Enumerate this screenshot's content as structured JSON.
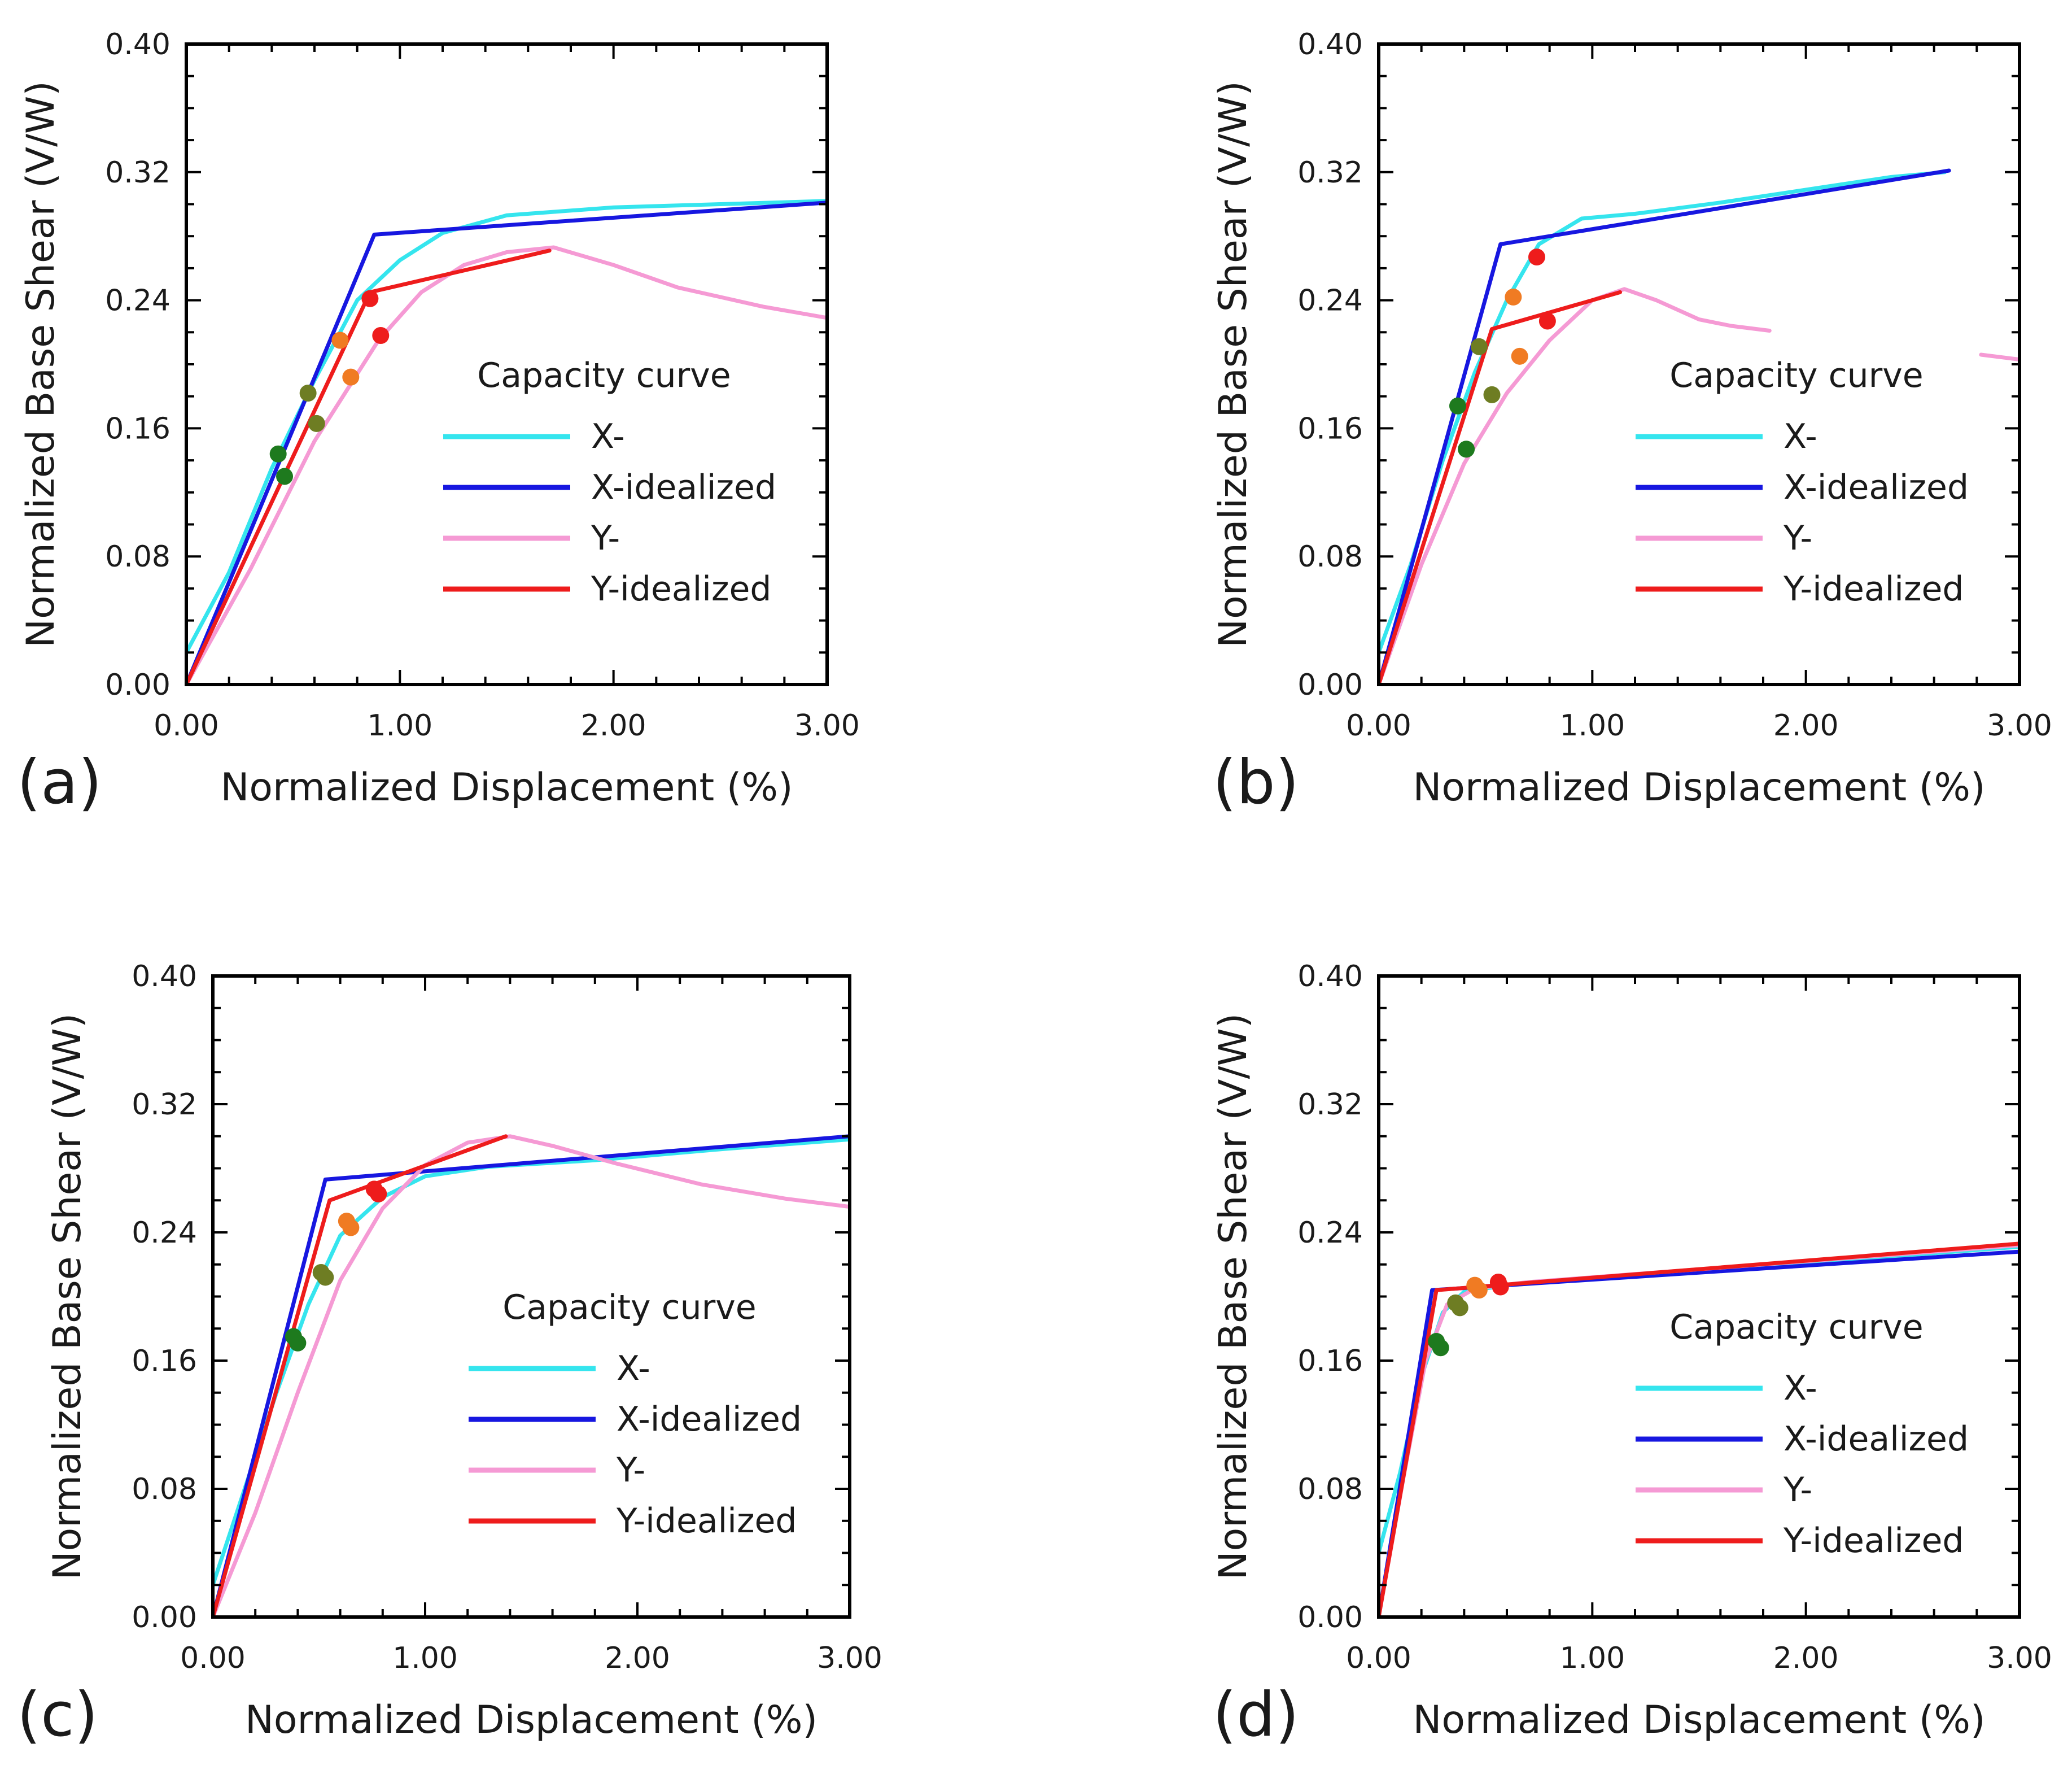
{
  "chart_data": [
    {
      "type": "line",
      "panel_label": "(a)",
      "xlabel": "Normalized Displacement (%)",
      "ylabel": "Normalized Base Shear (V/W)",
      "xlim": [
        0,
        3
      ],
      "ylim": [
        0,
        0.4
      ],
      "xticks": [
        "0.00",
        "1.00",
        "2.00",
        "3.00"
      ],
      "yticks": [
        "0.00",
        "0.08",
        "0.16",
        "0.24",
        "0.32",
        "0.40"
      ],
      "grid": false,
      "legend": {
        "title": "Capacity curve",
        "position": "right-center"
      },
      "series": [
        {
          "name": "X-",
          "color": "#35e5ee",
          "points": [
            [
              0,
              0.02
            ],
            [
              0.2,
              0.07
            ],
            [
              0.4,
              0.135
            ],
            [
              0.6,
              0.19
            ],
            [
              0.8,
              0.24
            ],
            [
              1.0,
              0.265
            ],
            [
              1.2,
              0.282
            ],
            [
              1.5,
              0.293
            ],
            [
              2.0,
              0.298
            ],
            [
              2.5,
              0.3
            ],
            [
              3.0,
              0.302
            ]
          ]
        },
        {
          "name": "X-idealized",
          "color": "#1717e0",
          "points": [
            [
              0,
              0
            ],
            [
              0.88,
              0.281
            ],
            [
              3.0,
              0.301
            ]
          ]
        },
        {
          "name": "Y-",
          "color": "#f59ad4",
          "points": [
            [
              0,
              0
            ],
            [
              0.3,
              0.072
            ],
            [
              0.6,
              0.152
            ],
            [
              0.9,
              0.215
            ],
            [
              1.1,
              0.245
            ],
            [
              1.3,
              0.262
            ],
            [
              1.5,
              0.27
            ],
            [
              1.72,
              0.273
            ],
            [
              2.0,
              0.262
            ],
            [
              2.3,
              0.248
            ],
            [
              2.7,
              0.236
            ],
            [
              3.0,
              0.229
            ]
          ]
        },
        {
          "name": "Y-idealized",
          "color": "#ee1c1c",
          "points": [
            [
              0,
              0
            ],
            [
              0.86,
              0.245
            ],
            [
              1.7,
              0.271
            ]
          ]
        }
      ],
      "markers": [
        {
          "x": 0.43,
          "y": 0.144,
          "color": "#1e7a1e"
        },
        {
          "x": 0.46,
          "y": 0.13,
          "color": "#1e7a1e"
        },
        {
          "x": 0.57,
          "y": 0.182,
          "color": "#6e7d23"
        },
        {
          "x": 0.61,
          "y": 0.163,
          "color": "#6e7d23"
        },
        {
          "x": 0.72,
          "y": 0.215,
          "color": "#f07b23"
        },
        {
          "x": 0.77,
          "y": 0.192,
          "color": "#f07b23"
        },
        {
          "x": 0.86,
          "y": 0.241,
          "color": "#ee1c1c"
        },
        {
          "x": 0.91,
          "y": 0.218,
          "color": "#ee1c1c"
        }
      ]
    },
    {
      "type": "line",
      "panel_label": "(b)",
      "xlabel": "Normalized Displacement (%)",
      "ylabel": "Normalized Base Shear (V/W)",
      "xlim": [
        0,
        3
      ],
      "ylim": [
        0,
        0.4
      ],
      "xticks": [
        "0.00",
        "1.00",
        "2.00",
        "3.00"
      ],
      "yticks": [
        "0.00",
        "0.08",
        "0.16",
        "0.24",
        "0.32",
        "0.40"
      ],
      "grid": false,
      "legend": {
        "title": "Capacity curve",
        "position": "right-center"
      },
      "series": [
        {
          "name": "X-",
          "color": "#35e5ee",
          "points": [
            [
              0,
              0.02
            ],
            [
              0.15,
              0.075
            ],
            [
              0.3,
              0.14
            ],
            [
              0.45,
              0.195
            ],
            [
              0.6,
              0.24
            ],
            [
              0.75,
              0.275
            ],
            [
              0.95,
              0.291
            ],
            [
              1.2,
              0.294
            ],
            [
              1.6,
              0.301
            ],
            [
              2.0,
              0.309
            ],
            [
              2.4,
              0.317
            ],
            [
              2.65,
              0.32
            ]
          ]
        },
        {
          "name": "X-idealized",
          "color": "#1717e0",
          "points": [
            [
              0,
              0
            ],
            [
              0.57,
              0.275
            ],
            [
              2.67,
              0.321
            ]
          ]
        },
        {
          "name": "Y-",
          "color": "#f59ad4",
          "points": [
            [
              0,
              0
            ],
            [
              0.2,
              0.075
            ],
            [
              0.4,
              0.138
            ],
            [
              0.6,
              0.182
            ],
            [
              0.8,
              0.215
            ],
            [
              1.0,
              0.24
            ],
            [
              1.15,
              0.247
            ],
            [
              1.3,
              0.24
            ],
            [
              1.5,
              0.228
            ],
            [
              1.65,
              0.224
            ],
            [
              1.83,
              0.221
            ]
          ]
        },
        {
          "name": "Y- (tail)",
          "color": "#f59ad4",
          "points": [
            [
              2.82,
              0.206
            ],
            [
              3.0,
              0.203
            ]
          ]
        },
        {
          "name": "Y-idealized",
          "color": "#ee1c1c",
          "points": [
            [
              0,
              0
            ],
            [
              0.53,
              0.222
            ],
            [
              1.13,
              0.245
            ]
          ]
        }
      ],
      "markers": [
        {
          "x": 0.37,
          "y": 0.174,
          "color": "#1e7a1e"
        },
        {
          "x": 0.41,
          "y": 0.147,
          "color": "#1e7a1e"
        },
        {
          "x": 0.47,
          "y": 0.211,
          "color": "#6e7d23"
        },
        {
          "x": 0.53,
          "y": 0.181,
          "color": "#6e7d23"
        },
        {
          "x": 0.63,
          "y": 0.242,
          "color": "#f07b23"
        },
        {
          "x": 0.66,
          "y": 0.205,
          "color": "#f07b23"
        },
        {
          "x": 0.74,
          "y": 0.267,
          "color": "#ee1c1c"
        },
        {
          "x": 0.79,
          "y": 0.227,
          "color": "#ee1c1c"
        }
      ]
    },
    {
      "type": "line",
      "panel_label": "(c)",
      "xlabel": "Normalized Displacement (%)",
      "ylabel": "Normalized Base Shear (V/W)",
      "xlim": [
        0,
        3
      ],
      "ylim": [
        0,
        0.4
      ],
      "xticks": [
        "0.00",
        "1.00",
        "2.00",
        "3.00"
      ],
      "yticks": [
        "0.00",
        "0.08",
        "0.16",
        "0.24",
        "0.32",
        "0.40"
      ],
      "grid": false,
      "legend": {
        "title": "Capacity curve",
        "position": "right-center"
      },
      "series": [
        {
          "name": "X-",
          "color": "#35e5ee",
          "points": [
            [
              0,
              0.02
            ],
            [
              0.15,
              0.08
            ],
            [
              0.3,
              0.14
            ],
            [
              0.45,
              0.195
            ],
            [
              0.6,
              0.238
            ],
            [
              0.8,
              0.262
            ],
            [
              1.0,
              0.275
            ],
            [
              1.3,
              0.281
            ],
            [
              1.8,
              0.285
            ],
            [
              2.4,
              0.292
            ],
            [
              3.0,
              0.298
            ]
          ]
        },
        {
          "name": "X-idealized",
          "color": "#1717e0",
          "points": [
            [
              0,
              0
            ],
            [
              0.53,
              0.273
            ],
            [
              3.0,
              0.3
            ]
          ]
        },
        {
          "name": "Y-",
          "color": "#f59ad4",
          "points": [
            [
              0,
              0
            ],
            [
              0.2,
              0.065
            ],
            [
              0.4,
              0.14
            ],
            [
              0.6,
              0.21
            ],
            [
              0.8,
              0.255
            ],
            [
              1.0,
              0.282
            ],
            [
              1.2,
              0.296
            ],
            [
              1.4,
              0.3
            ],
            [
              1.6,
              0.294
            ],
            [
              1.9,
              0.283
            ],
            [
              2.3,
              0.27
            ],
            [
              2.7,
              0.261
            ],
            [
              3.0,
              0.256
            ]
          ]
        },
        {
          "name": "Y-idealized",
          "color": "#ee1c1c",
          "points": [
            [
              0,
              0
            ],
            [
              0.55,
              0.26
            ],
            [
              1.38,
              0.3
            ]
          ]
        }
      ],
      "markers": [
        {
          "x": 0.38,
          "y": 0.175,
          "color": "#1e7a1e"
        },
        {
          "x": 0.4,
          "y": 0.171,
          "color": "#1e7a1e"
        },
        {
          "x": 0.51,
          "y": 0.215,
          "color": "#6e7d23"
        },
        {
          "x": 0.53,
          "y": 0.212,
          "color": "#6e7d23"
        },
        {
          "x": 0.63,
          "y": 0.247,
          "color": "#f07b23"
        },
        {
          "x": 0.65,
          "y": 0.243,
          "color": "#f07b23"
        },
        {
          "x": 0.76,
          "y": 0.267,
          "color": "#ee1c1c"
        },
        {
          "x": 0.78,
          "y": 0.264,
          "color": "#ee1c1c"
        }
      ]
    },
    {
      "type": "line",
      "panel_label": "(d)",
      "xlabel": "Normalized Displacement (%)",
      "ylabel": "Normalized Base Shear (V/W)",
      "xlim": [
        0,
        3
      ],
      "ylim": [
        0,
        0.4
      ],
      "xticks": [
        "0.00",
        "1.00",
        "2.00",
        "3.00"
      ],
      "yticks": [
        "0.00",
        "0.08",
        "0.16",
        "0.24",
        "0.32",
        "0.40"
      ],
      "grid": false,
      "legend": {
        "title": "Capacity curve",
        "position": "right-center"
      },
      "series": [
        {
          "name": "X-",
          "color": "#35e5ee",
          "points": [
            [
              0,
              0.04
            ],
            [
              0.1,
              0.09
            ],
            [
              0.2,
              0.15
            ],
            [
              0.3,
              0.19
            ],
            [
              0.4,
              0.203
            ],
            [
              0.6,
              0.207
            ],
            [
              1.0,
              0.211
            ],
            [
              2.0,
              0.221
            ],
            [
              3.0,
              0.231
            ]
          ]
        },
        {
          "name": "X-idealized",
          "color": "#1717e0",
          "points": [
            [
              0,
              0
            ],
            [
              0.25,
              0.204
            ],
            [
              3.0,
              0.228
            ]
          ]
        },
        {
          "name": "Y-",
          "color": "#f59ad4",
          "points": [
            [
              0,
              0
            ],
            [
              0.12,
              0.09
            ],
            [
              0.22,
              0.16
            ],
            [
              0.32,
              0.195
            ],
            [
              0.45,
              0.205
            ],
            [
              0.7,
              0.209
            ],
            [
              1.2,
              0.214
            ],
            [
              2.0,
              0.222
            ],
            [
              3.0,
              0.232
            ]
          ]
        },
        {
          "name": "Y-idealized",
          "color": "#ee1c1c",
          "points": [
            [
              0,
              0
            ],
            [
              0.27,
              0.204
            ],
            [
              3.0,
              0.233
            ]
          ]
        }
      ],
      "markers": [
        {
          "x": 0.27,
          "y": 0.172,
          "color": "#1e7a1e"
        },
        {
          "x": 0.29,
          "y": 0.168,
          "color": "#1e7a1e"
        },
        {
          "x": 0.36,
          "y": 0.196,
          "color": "#6e7d23"
        },
        {
          "x": 0.38,
          "y": 0.193,
          "color": "#6e7d23"
        },
        {
          "x": 0.45,
          "y": 0.207,
          "color": "#f07b23"
        },
        {
          "x": 0.47,
          "y": 0.204,
          "color": "#f07b23"
        },
        {
          "x": 0.56,
          "y": 0.209,
          "color": "#ee1c1c"
        },
        {
          "x": 0.57,
          "y": 0.206,
          "color": "#ee1c1c"
        }
      ]
    }
  ]
}
